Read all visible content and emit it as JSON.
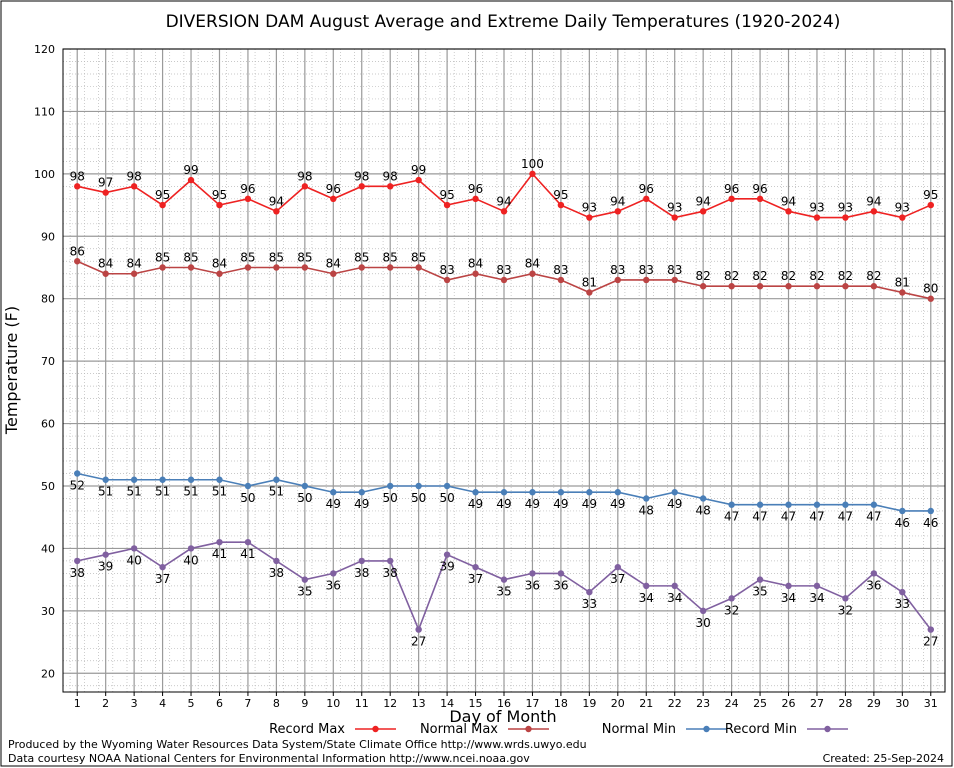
{
  "chart_data": {
    "type": "line",
    "title": "DIVERSION DAM August Average and Extreme Daily Temperatures (1920-2024)",
    "xlabel": "Day of Month",
    "ylabel": "Temperature (F)",
    "x": [
      1,
      2,
      3,
      4,
      5,
      6,
      7,
      8,
      9,
      10,
      11,
      12,
      13,
      14,
      15,
      16,
      17,
      18,
      19,
      20,
      21,
      22,
      23,
      24,
      25,
      26,
      27,
      28,
      29,
      30,
      31
    ],
    "xlim": [
      0.5,
      31.5
    ],
    "ylim": [
      17,
      120
    ],
    "yticks": [
      20,
      30,
      40,
      50,
      60,
      70,
      80,
      90,
      100,
      110,
      120
    ],
    "grid": true,
    "legend_position": "bottom",
    "series": [
      {
        "name": "Record Max",
        "color": "#ee2222",
        "label_pos": "above",
        "values": [
          98,
          97,
          98,
          95,
          99,
          95,
          96,
          94,
          98,
          96,
          98,
          98,
          99,
          95,
          96,
          94,
          100,
          95,
          93,
          94,
          96,
          93,
          94,
          96,
          96,
          94,
          93,
          93,
          94,
          93,
          95
        ]
      },
      {
        "name": "Normal Max",
        "color": "#bb4444",
        "label_pos": "above",
        "values": [
          86,
          84,
          84,
          85,
          85,
          84,
          85,
          85,
          85,
          84,
          85,
          85,
          85,
          83,
          84,
          83,
          84,
          83,
          81,
          83,
          83,
          83,
          82,
          82,
          82,
          82,
          82,
          82,
          82,
          81,
          80
        ]
      },
      {
        "name": "Normal Min",
        "color": "#4a7fb8",
        "label_pos": "below",
        "values": [
          52,
          51,
          51,
          51,
          51,
          51,
          50,
          51,
          50,
          49,
          49,
          50,
          50,
          50,
          49,
          49,
          49,
          49,
          49,
          49,
          48,
          49,
          48,
          47,
          47,
          47,
          47,
          47,
          47,
          46,
          46
        ]
      },
      {
        "name": "Record Min",
        "color": "#8060a0",
        "label_pos": "below",
        "values": [
          38,
          39,
          40,
          37,
          40,
          41,
          41,
          38,
          35,
          36,
          38,
          38,
          27,
          39,
          37,
          35,
          36,
          36,
          33,
          37,
          34,
          34,
          30,
          32,
          35,
          34,
          34,
          32,
          36,
          33,
          27
        ]
      }
    ]
  },
  "footer": {
    "produced_by": "Produced by the Wyoming Water Resources Data System/State Climate Office http://www.wrds.uwyo.edu",
    "data_courtesy": "Data courtesy NOAA National Centers for Environmental Information http://www.ncei.noaa.gov",
    "created": "Created: 25-Sep-2024"
  }
}
